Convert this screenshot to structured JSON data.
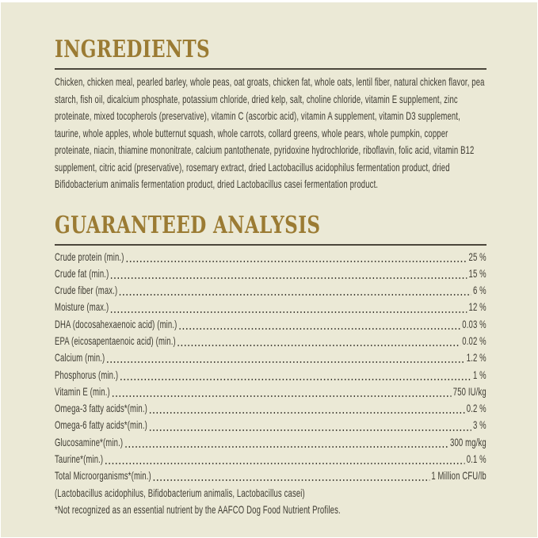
{
  "colors": {
    "accent": "#9b7b33",
    "rule": "#4b463b",
    "text": "#3e3b32",
    "panel_background": "#ebe9d6"
  },
  "ingredients": {
    "title": "INGREDIENTS",
    "text": "Chicken, chicken meal, pearled barley, whole peas, oat groats, chicken fat, whole oats, lentil fiber, natural chicken flavor, pea starch, fish oil, dicalcium phosphate, potassium chloride, dried kelp, salt, choline chloride, vitamin E supplement, zinc proteinate, mixed tocopherols (preservative), vitamin C (ascorbic acid), vitamin A supplement, vitamin D3 supplement, taurine, whole apples, whole butternut squash, whole carrots, collard greens, whole pears, whole pumpkin, copper proteinate, niacin, thiamine mononitrate, calcium pantothenate, pyridoxine hydrochloride, riboflavin, folic acid, vitamin B12 supplement, citric acid (preservative), rosemary extract, dried Lactobacillus acidophilus fermentation product, dried Bifidobacterium animalis fermentation product, dried Lactobacillus casei fermentation product."
  },
  "analysis": {
    "title": "GUARANTEED ANALYSIS",
    "rows": [
      {
        "label": "Crude protein (min.)",
        "value": "25 %"
      },
      {
        "label": "Crude fat (min.)",
        "value": "15 %"
      },
      {
        "label": "Crude fiber (max.)",
        "value": "6 %"
      },
      {
        "label": "Moisture (max.)",
        "value": "12 %"
      },
      {
        "label": "DHA (docosahexaenoic acid) (min.)",
        "value": "0.03 %"
      },
      {
        "label": "EPA (eicosapentaenoic acid) (min.)",
        "value": "0.02 %"
      },
      {
        "label": "Calcium (min.)",
        "value": "1.2 %"
      },
      {
        "label": "Phosphorus (min.)",
        "value": "1 %"
      },
      {
        "label": "Vitamin E (min.)",
        "value": "750 IU/kg"
      },
      {
        "label": "Omega-3 fatty acids*(min.)",
        "value": "0.2 %"
      },
      {
        "label": "Omega-6 fatty acids*(min.)",
        "value": "3 %"
      },
      {
        "label": "Glucosamine*(min.)",
        "value": "300 mg/kg"
      },
      {
        "label": "Taurine*(min.)",
        "value": "0.1 %"
      },
      {
        "label": "Total Microorganisms*(min.)",
        "value": "1 Million CFU/lb"
      }
    ],
    "species_note": "(Lactobacillus acidophilus, Bifidobacterium animalis, Lactobacillus casei)",
    "footnote": "*Not recognized as an essential nutrient by the AAFCO Dog Food Nutrient Profiles."
  }
}
